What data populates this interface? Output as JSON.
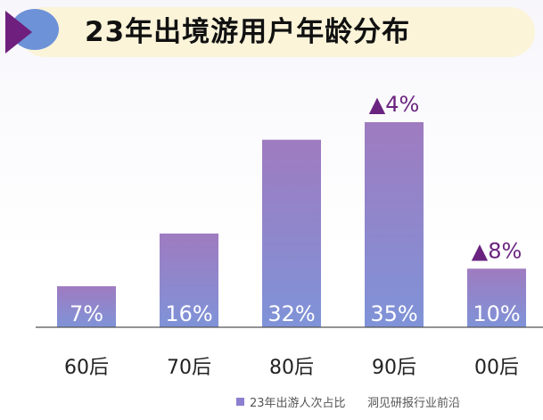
{
  "title": "23年出境游用户年龄分布",
  "colors": {
    "bar_top": "#9f7bc0",
    "bar_bottom": "#7f93d8",
    "arrow": "#6a2480",
    "axis": "#555555"
  },
  "chart_data": {
    "type": "bar",
    "categories": [
      "60后",
      "70后",
      "80后",
      "90后",
      "00后"
    ],
    "series": [
      {
        "name": "23年出游人次占比",
        "values": [
          7,
          16,
          32,
          35,
          10
        ],
        "labels": [
          "7%",
          "16%",
          "32%",
          "35%",
          "10%"
        ]
      }
    ],
    "annotations": [
      {
        "category": "90后",
        "text": "▲4%"
      },
      {
        "category": "00后",
        "text": "▲8%"
      }
    ],
    "ylim": [
      0,
      35
    ],
    "grid": false,
    "legend": "bottom"
  },
  "watermark": "洞见研报行业前沿"
}
